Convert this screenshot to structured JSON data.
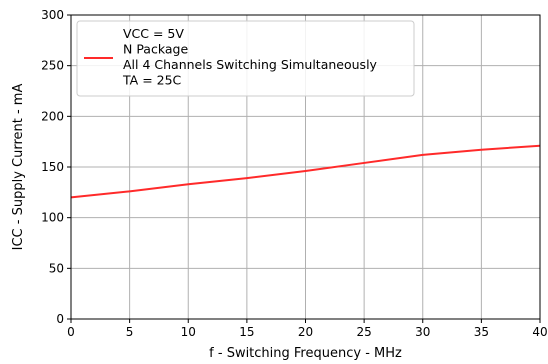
{
  "chart_data": {
    "type": "line",
    "title": "",
    "xlabel": "f - Switching Frequency - MHz",
    "ylabel": "ICC - Supply Current - mA",
    "xlim": [
      0,
      40
    ],
    "ylim": [
      0,
      300
    ],
    "xticks": [
      0,
      5,
      10,
      15,
      20,
      25,
      30,
      35,
      40
    ],
    "yticks": [
      0,
      50,
      100,
      150,
      200,
      250,
      300
    ],
    "grid": true,
    "legend": {
      "placement": "top-left",
      "lines": [
        "VCC = 5V",
        "N Package",
        "All 4 Channels Switching Simultaneously",
        "TA = 25C"
      ]
    },
    "series": [
      {
        "color": "#ff2a2a",
        "x": [
          0,
          5,
          10,
          15,
          20,
          25,
          30,
          35,
          40
        ],
        "y": [
          120,
          126,
          133,
          139,
          146,
          154,
          162,
          167,
          171
        ]
      }
    ]
  }
}
